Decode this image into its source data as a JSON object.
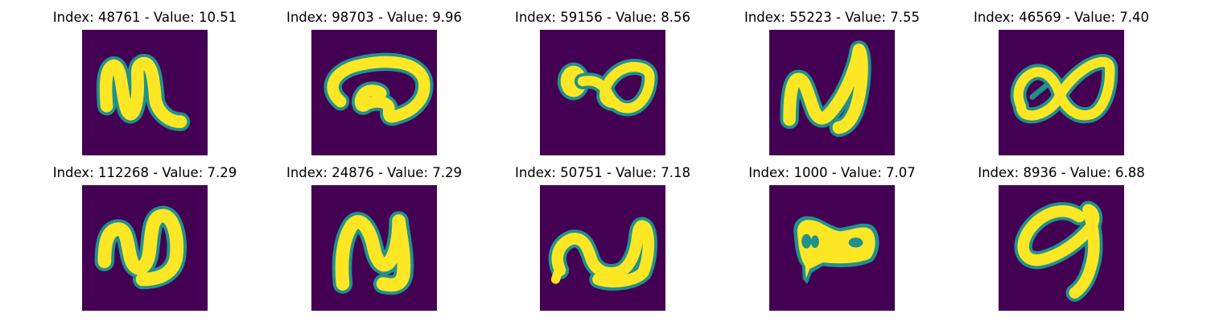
{
  "colors": {
    "background": "#440154",
    "mid": "#21918c",
    "foreground": "#fde725"
  },
  "panels": [
    {
      "title": "Index: 48761 - Value: 10.51",
      "glyph": "N-shaped stroke"
    },
    {
      "title": "Index: 98703 - Value: 9.96",
      "glyph": "curled loop stroke"
    },
    {
      "title": "Index: 59156 - Value: 8.56",
      "glyph": "double loop stroke"
    },
    {
      "title": "Index: 55223 - Value: 7.55",
      "glyph": "tall N-shaped stroke"
    },
    {
      "title": "Index: 46569 - Value: 7.40",
      "glyph": "double loop stroke"
    },
    {
      "title": "Index: 112268 - Value: 7.29",
      "glyph": "N-shaped stroke"
    },
    {
      "title": "Index: 24876 - Value: 7.29",
      "glyph": "N-shaped stroke"
    },
    {
      "title": "Index: 50751 - Value: 7.18",
      "glyph": "wavy N-shaped stroke"
    },
    {
      "title": "Index: 1000 - Value: 7.07",
      "glyph": "filled double loop"
    },
    {
      "title": "Index: 8936 - Value: 6.88",
      "glyph": "loop with tail stroke"
    }
  ]
}
